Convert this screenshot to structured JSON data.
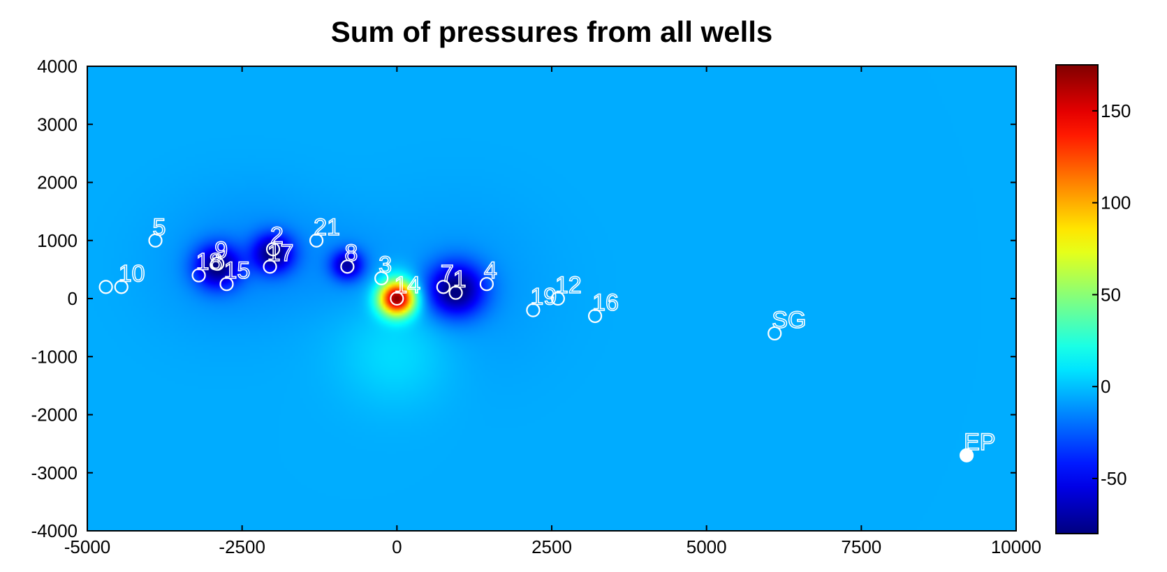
{
  "chart_data": {
    "type": "heatmap",
    "title": "Sum of pressures from all wells",
    "xlim": [
      -5000,
      10000
    ],
    "ylim": [
      -4000,
      4000
    ],
    "xticks": [
      -5000,
      -2500,
      0,
      2500,
      5000,
      7500,
      10000
    ],
    "xtick_labels": [
      "-5000",
      "-2500",
      "0",
      "2500",
      "5000",
      "7500",
      "10000"
    ],
    "yticks": [
      4000,
      3000,
      2000,
      1000,
      0,
      -1000,
      -2000,
      -3000,
      -4000
    ],
    "ytick_labels": [
      "4000",
      "3000",
      "2000",
      "1000",
      "0",
      "-1000",
      "-2000",
      "-3000",
      "-4000"
    ],
    "colorbar": {
      "range": [
        -80,
        175
      ],
      "ticks": [
        150,
        100,
        50,
        0,
        -50
      ],
      "tick_labels": [
        "150",
        "100",
        "50",
        "0",
        "-50"
      ],
      "colormap": "jet"
    },
    "background_value": -5,
    "colors": {
      "background_field": "#1ab4f8",
      "wells": "#ffffff"
    },
    "wells": [
      {
        "label": "10",
        "x": -4450,
        "y": 200,
        "marker": "open"
      },
      {
        "label": "",
        "x": -4700,
        "y": 200,
        "marker": "open"
      },
      {
        "label": "5",
        "x": -3900,
        "y": 1000,
        "marker": "open"
      },
      {
        "label": "18",
        "x": -3200,
        "y": 400,
        "marker": "open"
      },
      {
        "label": "9",
        "x": -2900,
        "y": 600,
        "marker": "open"
      },
      {
        "label": "15",
        "x": -2750,
        "y": 250,
        "marker": "open"
      },
      {
        "label": "2",
        "x": -2000,
        "y": 850,
        "marker": "open"
      },
      {
        "label": "17",
        "x": -2050,
        "y": 550,
        "marker": "open"
      },
      {
        "label": "21",
        "x": -1300,
        "y": 1000,
        "marker": "open"
      },
      {
        "label": "8",
        "x": -800,
        "y": 550,
        "marker": "open"
      },
      {
        "label": "3",
        "x": -250,
        "y": 350,
        "marker": "open"
      },
      {
        "label": "14",
        "x": 0,
        "y": 0,
        "marker": "open"
      },
      {
        "label": "7",
        "x": 750,
        "y": 200,
        "marker": "open"
      },
      {
        "label": "1",
        "x": 950,
        "y": 100,
        "marker": "open"
      },
      {
        "label": "4",
        "x": 1450,
        "y": 250,
        "marker": "open"
      },
      {
        "label": "19",
        "x": 2200,
        "y": -200,
        "marker": "open"
      },
      {
        "label": "12",
        "x": 2600,
        "y": 0,
        "marker": "open"
      },
      {
        "label": "16",
        "x": 3200,
        "y": -300,
        "marker": "open"
      },
      {
        "label": "SG",
        "x": 6100,
        "y": -600,
        "marker": "open"
      },
      {
        "label": "EP",
        "x": 9200,
        "y": -2700,
        "marker": "filled"
      }
    ],
    "pressure_sources": [
      {
        "x": 0,
        "y": 0,
        "peak": 175,
        "sigma": 200,
        "dipole_low_dx": 0,
        "dipole_low_dy": -900
      },
      {
        "x": 950,
        "y": 150,
        "peak": -75,
        "sigma": 320
      },
      {
        "x": -2000,
        "y": 780,
        "peak": -70,
        "sigma": 230
      },
      {
        "x": -2900,
        "y": 550,
        "peak": -70,
        "sigma": 260
      },
      {
        "x": -800,
        "y": 580,
        "peak": -60,
        "sigma": 180
      }
    ]
  }
}
